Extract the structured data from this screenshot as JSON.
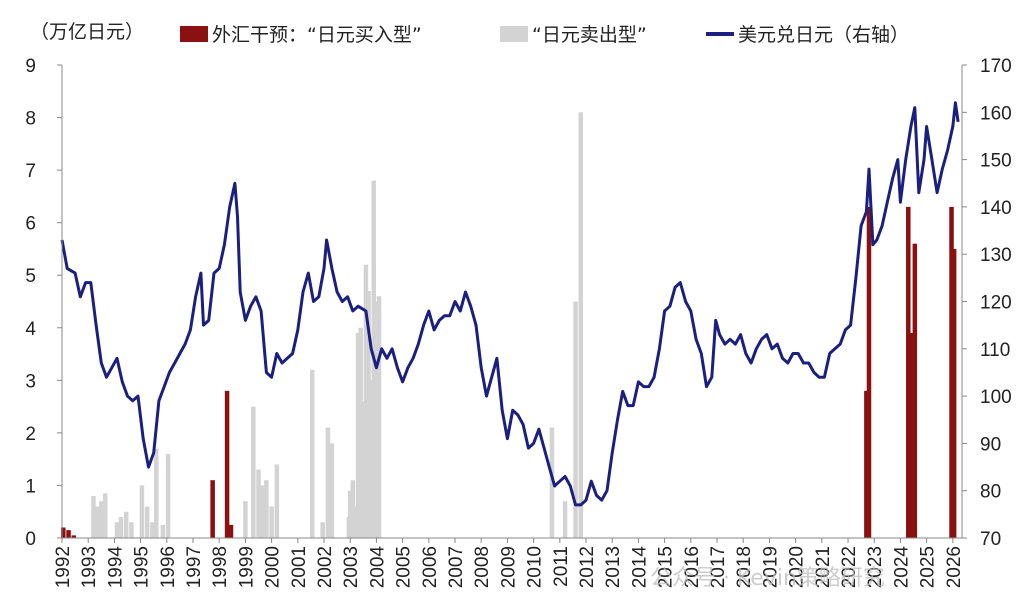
{
  "chart_data": {
    "type": "bar+line",
    "y_left_unit": "（万亿日元）",
    "y_left_range": [
      0,
      9
    ],
    "y_left_ticks": [
      "0",
      "1",
      "2",
      "3",
      "4",
      "5",
      "6",
      "7",
      "8",
      "9"
    ],
    "y_right_range": [
      70,
      170
    ],
    "y_right_ticks": [
      "70",
      "80",
      "90",
      "100",
      "110",
      "120",
      "130",
      "140",
      "150",
      "160",
      "170"
    ],
    "x_range": [
      1992,
      2026
    ],
    "x_ticks": [
      "1992",
      "1993",
      "1994",
      "1995",
      "1996",
      "1997",
      "1998",
      "1999",
      "2000",
      "2001",
      "2002",
      "2003",
      "2004",
      "2005",
      "2006",
      "2007",
      "2008",
      "2009",
      "2010",
      "2011",
      "2012",
      "2013",
      "2014",
      "2015",
      "2016",
      "2017",
      "2018",
      "2019",
      "2020",
      "2021",
      "2022",
      "2023",
      "2024",
      "2025",
      "2026"
    ],
    "legend": [
      {
        "label": "外汇干预：“日元买入型”",
        "type": "bar",
        "color": "#8b1010"
      },
      {
        "label": "“日元卖出型”",
        "type": "bar",
        "color": "#d3d3d3"
      },
      {
        "label": "美元兑日元（右轴）",
        "type": "line",
        "color": "#1a1f80"
      }
    ],
    "series": [
      {
        "name": "外汇干预：“日元买入型”",
        "axis": "left",
        "color": "#8b1010",
        "points": [
          {
            "x": 1992.05,
            "y": 0.2
          },
          {
            "x": 1992.25,
            "y": 0.15
          },
          {
            "x": 1992.45,
            "y": 0.05
          },
          {
            "x": 1997.75,
            "y": 1.1
          },
          {
            "x": 1998.3,
            "y": 2.8
          },
          {
            "x": 1998.45,
            "y": 0.25
          },
          {
            "x": 2022.7,
            "y": 2.8
          },
          {
            "x": 2022.8,
            "y": 6.3
          },
          {
            "x": 2024.3,
            "y": 6.3
          },
          {
            "x": 2024.4,
            "y": 3.9
          },
          {
            "x": 2024.55,
            "y": 5.6
          },
          {
            "x": 2025.95,
            "y": 6.3
          },
          {
            "x": 2026.05,
            "y": 5.5
          }
        ]
      },
      {
        "name": "“日元卖出型”",
        "axis": "left",
        "color": "#d3d3d3",
        "points": [
          {
            "x": 1993.2,
            "y": 0.8
          },
          {
            "x": 1993.35,
            "y": 0.6
          },
          {
            "x": 1993.5,
            "y": 0.7
          },
          {
            "x": 1993.65,
            "y": 0.85
          },
          {
            "x": 1994.1,
            "y": 0.3
          },
          {
            "x": 1994.25,
            "y": 0.4
          },
          {
            "x": 1994.45,
            "y": 0.5
          },
          {
            "x": 1994.65,
            "y": 0.3
          },
          {
            "x": 1995.05,
            "y": 1.0
          },
          {
            "x": 1995.25,
            "y": 0.6
          },
          {
            "x": 1995.45,
            "y": 0.3
          },
          {
            "x": 1995.6,
            "y": 1.7
          },
          {
            "x": 1995.85,
            "y": 0.25
          },
          {
            "x": 1996.05,
            "y": 1.6
          },
          {
            "x": 1999.0,
            "y": 0.7
          },
          {
            "x": 1999.3,
            "y": 2.5
          },
          {
            "x": 1999.5,
            "y": 1.3
          },
          {
            "x": 1999.65,
            "y": 1.0
          },
          {
            "x": 1999.8,
            "y": 1.1
          },
          {
            "x": 2000.0,
            "y": 0.6
          },
          {
            "x": 2000.2,
            "y": 1.4
          },
          {
            "x": 2001.55,
            "y": 3.2
          },
          {
            "x": 2001.95,
            "y": 0.3
          },
          {
            "x": 2002.15,
            "y": 2.1
          },
          {
            "x": 2002.3,
            "y": 1.8
          },
          {
            "x": 2002.95,
            "y": 0.4
          },
          {
            "x": 2003.0,
            "y": 0.9
          },
          {
            "x": 2003.1,
            "y": 1.1
          },
          {
            "x": 2003.2,
            "y": 0.6
          },
          {
            "x": 2003.3,
            "y": 3.9
          },
          {
            "x": 2003.4,
            "y": 4.0
          },
          {
            "x": 2003.5,
            "y": 2.6
          },
          {
            "x": 2003.6,
            "y": 5.2
          },
          {
            "x": 2003.7,
            "y": 4.7
          },
          {
            "x": 2003.8,
            "y": 3.0
          },
          {
            "x": 2003.9,
            "y": 6.8
          },
          {
            "x": 2004.0,
            "y": 4.5
          },
          {
            "x": 2004.1,
            "y": 4.6
          },
          {
            "x": 2010.7,
            "y": 2.1
          },
          {
            "x": 2011.2,
            "y": 0.7
          },
          {
            "x": 2011.6,
            "y": 4.5
          },
          {
            "x": 2011.8,
            "y": 8.1
          }
        ]
      },
      {
        "name": "美元兑日元（右轴）",
        "axis": "right",
        "color": "#1a1f80",
        "points": [
          {
            "x": 1992.0,
            "y": 133
          },
          {
            "x": 1992.2,
            "y": 127
          },
          {
            "x": 1992.5,
            "y": 126
          },
          {
            "x": 1992.7,
            "y": 121
          },
          {
            "x": 1992.9,
            "y": 124
          },
          {
            "x": 1993.1,
            "y": 124
          },
          {
            "x": 1993.3,
            "y": 115
          },
          {
            "x": 1993.5,
            "y": 107
          },
          {
            "x": 1993.7,
            "y": 104
          },
          {
            "x": 1993.9,
            "y": 106
          },
          {
            "x": 1994.1,
            "y": 108
          },
          {
            "x": 1994.3,
            "y": 103
          },
          {
            "x": 1994.5,
            "y": 100
          },
          {
            "x": 1994.7,
            "y": 99
          },
          {
            "x": 1994.9,
            "y": 100
          },
          {
            "x": 1995.1,
            "y": 91
          },
          {
            "x": 1995.3,
            "y": 85
          },
          {
            "x": 1995.5,
            "y": 88
          },
          {
            "x": 1995.7,
            "y": 99
          },
          {
            "x": 1995.9,
            "y": 102
          },
          {
            "x": 1996.1,
            "y": 105
          },
          {
            "x": 1996.3,
            "y": 107
          },
          {
            "x": 1996.5,
            "y": 109
          },
          {
            "x": 1996.7,
            "y": 111
          },
          {
            "x": 1996.9,
            "y": 114
          },
          {
            "x": 1997.1,
            "y": 121
          },
          {
            "x": 1997.3,
            "y": 126
          },
          {
            "x": 1997.4,
            "y": 115
          },
          {
            "x": 1997.6,
            "y": 116
          },
          {
            "x": 1997.8,
            "y": 126
          },
          {
            "x": 1998.0,
            "y": 127
          },
          {
            "x": 1998.2,
            "y": 132
          },
          {
            "x": 1998.4,
            "y": 140
          },
          {
            "x": 1998.6,
            "y": 145
          },
          {
            "x": 1998.7,
            "y": 138
          },
          {
            "x": 1998.8,
            "y": 122
          },
          {
            "x": 1999.0,
            "y": 116
          },
          {
            "x": 1999.2,
            "y": 119
          },
          {
            "x": 1999.4,
            "y": 121
          },
          {
            "x": 1999.6,
            "y": 118
          },
          {
            "x": 1999.8,
            "y": 105
          },
          {
            "x": 2000.0,
            "y": 104
          },
          {
            "x": 2000.2,
            "y": 109
          },
          {
            "x": 2000.4,
            "y": 107
          },
          {
            "x": 2000.6,
            "y": 108
          },
          {
            "x": 2000.8,
            "y": 109
          },
          {
            "x": 2001.0,
            "y": 114
          },
          {
            "x": 2001.2,
            "y": 122
          },
          {
            "x": 2001.4,
            "y": 126
          },
          {
            "x": 2001.6,
            "y": 120
          },
          {
            "x": 2001.8,
            "y": 121
          },
          {
            "x": 2002.0,
            "y": 127
          },
          {
            "x": 2002.1,
            "y": 133
          },
          {
            "x": 2002.3,
            "y": 127
          },
          {
            "x": 2002.5,
            "y": 122
          },
          {
            "x": 2002.7,
            "y": 120
          },
          {
            "x": 2002.9,
            "y": 121
          },
          {
            "x": 2003.1,
            "y": 118
          },
          {
            "x": 2003.3,
            "y": 119
          },
          {
            "x": 2003.6,
            "y": 118
          },
          {
            "x": 2003.8,
            "y": 110
          },
          {
            "x": 2004.0,
            "y": 106
          },
          {
            "x": 2004.2,
            "y": 110
          },
          {
            "x": 2004.4,
            "y": 108
          },
          {
            "x": 2004.6,
            "y": 110
          },
          {
            "x": 2004.8,
            "y": 106
          },
          {
            "x": 2005.0,
            "y": 103
          },
          {
            "x": 2005.2,
            "y": 106
          },
          {
            "x": 2005.4,
            "y": 108
          },
          {
            "x": 2005.6,
            "y": 111
          },
          {
            "x": 2005.8,
            "y": 115
          },
          {
            "x": 2006.0,
            "y": 118
          },
          {
            "x": 2006.2,
            "y": 114
          },
          {
            "x": 2006.4,
            "y": 116
          },
          {
            "x": 2006.6,
            "y": 117
          },
          {
            "x": 2006.8,
            "y": 117
          },
          {
            "x": 2007.0,
            "y": 120
          },
          {
            "x": 2007.2,
            "y": 118
          },
          {
            "x": 2007.4,
            "y": 122
          },
          {
            "x": 2007.6,
            "y": 119
          },
          {
            "x": 2007.8,
            "y": 115
          },
          {
            "x": 2008.0,
            "y": 106
          },
          {
            "x": 2008.2,
            "y": 100
          },
          {
            "x": 2008.4,
            "y": 104
          },
          {
            "x": 2008.6,
            "y": 108
          },
          {
            "x": 2008.8,
            "y": 97
          },
          {
            "x": 2009.0,
            "y": 91
          },
          {
            "x": 2009.2,
            "y": 97
          },
          {
            "x": 2009.4,
            "y": 96
          },
          {
            "x": 2009.6,
            "y": 94
          },
          {
            "x": 2009.8,
            "y": 89
          },
          {
            "x": 2010.0,
            "y": 90
          },
          {
            "x": 2010.2,
            "y": 93
          },
          {
            "x": 2010.4,
            "y": 89
          },
          {
            "x": 2010.6,
            "y": 85
          },
          {
            "x": 2010.8,
            "y": 81
          },
          {
            "x": 2011.0,
            "y": 82
          },
          {
            "x": 2011.2,
            "y": 83
          },
          {
            "x": 2011.4,
            "y": 81
          },
          {
            "x": 2011.6,
            "y": 77
          },
          {
            "x": 2011.8,
            "y": 77
          },
          {
            "x": 2012.0,
            "y": 78
          },
          {
            "x": 2012.2,
            "y": 82
          },
          {
            "x": 2012.4,
            "y": 79
          },
          {
            "x": 2012.6,
            "y": 78
          },
          {
            "x": 2012.8,
            "y": 80
          },
          {
            "x": 2013.0,
            "y": 88
          },
          {
            "x": 2013.2,
            "y": 95
          },
          {
            "x": 2013.4,
            "y": 101
          },
          {
            "x": 2013.6,
            "y": 98
          },
          {
            "x": 2013.8,
            "y": 98
          },
          {
            "x": 2014.0,
            "y": 103
          },
          {
            "x": 2014.2,
            "y": 102
          },
          {
            "x": 2014.4,
            "y": 102
          },
          {
            "x": 2014.6,
            "y": 104
          },
          {
            "x": 2014.8,
            "y": 110
          },
          {
            "x": 2015.0,
            "y": 118
          },
          {
            "x": 2015.2,
            "y": 119
          },
          {
            "x": 2015.4,
            "y": 123
          },
          {
            "x": 2015.6,
            "y": 124
          },
          {
            "x": 2015.8,
            "y": 120
          },
          {
            "x": 2016.0,
            "y": 118
          },
          {
            "x": 2016.2,
            "y": 112
          },
          {
            "x": 2016.4,
            "y": 109
          },
          {
            "x": 2016.6,
            "y": 102
          },
          {
            "x": 2016.8,
            "y": 104
          },
          {
            "x": 2016.95,
            "y": 116
          },
          {
            "x": 2017.1,
            "y": 113
          },
          {
            "x": 2017.3,
            "y": 111
          },
          {
            "x": 2017.5,
            "y": 112
          },
          {
            "x": 2017.7,
            "y": 111
          },
          {
            "x": 2017.9,
            "y": 113
          },
          {
            "x": 2018.1,
            "y": 109
          },
          {
            "x": 2018.3,
            "y": 107
          },
          {
            "x": 2018.5,
            "y": 110
          },
          {
            "x": 2018.7,
            "y": 112
          },
          {
            "x": 2018.9,
            "y": 113
          },
          {
            "x": 2019.1,
            "y": 110
          },
          {
            "x": 2019.3,
            "y": 111
          },
          {
            "x": 2019.5,
            "y": 108
          },
          {
            "x": 2019.7,
            "y": 107
          },
          {
            "x": 2019.9,
            "y": 109
          },
          {
            "x": 2020.1,
            "y": 109
          },
          {
            "x": 2020.3,
            "y": 107
          },
          {
            "x": 2020.5,
            "y": 107
          },
          {
            "x": 2020.7,
            "y": 105
          },
          {
            "x": 2020.9,
            "y": 104
          },
          {
            "x": 2021.1,
            "y": 104
          },
          {
            "x": 2021.3,
            "y": 109
          },
          {
            "x": 2021.5,
            "y": 110
          },
          {
            "x": 2021.7,
            "y": 111
          },
          {
            "x": 2021.9,
            "y": 114
          },
          {
            "x": 2022.1,
            "y": 115
          },
          {
            "x": 2022.3,
            "y": 125
          },
          {
            "x": 2022.5,
            "y": 136
          },
          {
            "x": 2022.7,
            "y": 139
          },
          {
            "x": 2022.8,
            "y": 148
          },
          {
            "x": 2022.95,
            "y": 132
          },
          {
            "x": 2023.1,
            "y": 133
          },
          {
            "x": 2023.3,
            "y": 136
          },
          {
            "x": 2023.5,
            "y": 141
          },
          {
            "x": 2023.7,
            "y": 146
          },
          {
            "x": 2023.9,
            "y": 150
          },
          {
            "x": 2024.0,
            "y": 141
          },
          {
            "x": 2024.2,
            "y": 150
          },
          {
            "x": 2024.4,
            "y": 157
          },
          {
            "x": 2024.55,
            "y": 161
          },
          {
            "x": 2024.7,
            "y": 143
          },
          {
            "x": 2024.9,
            "y": 150
          },
          {
            "x": 2025.0,
            "y": 157
          },
          {
            "x": 2025.2,
            "y": 150
          },
          {
            "x": 2025.4,
            "y": 143
          },
          {
            "x": 2025.6,
            "y": 148
          },
          {
            "x": 2025.8,
            "y": 152
          },
          {
            "x": 2026.0,
            "y": 157
          },
          {
            "x": 2026.1,
            "y": 162
          },
          {
            "x": 2026.2,
            "y": 158
          }
        ]
      }
    ]
  },
  "watermark": "公众号 · Kevin策略研究"
}
